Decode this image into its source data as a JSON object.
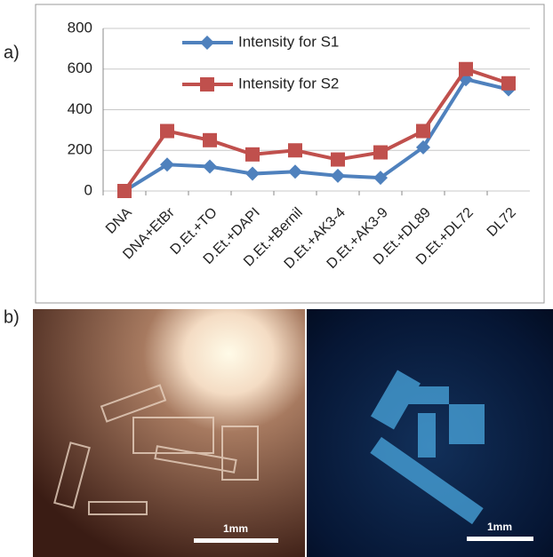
{
  "figure": {
    "panel_a": "a)",
    "panel_b": "b)",
    "scale_left": "1mm",
    "scale_right": "1mm"
  },
  "chart_data": {
    "type": "line",
    "categories": [
      "DNA",
      "DNA+EtBr",
      "D.Et.+TO",
      "D.Et.+DAPI",
      "D.Et.+Bernil",
      "D.Et.+AK3-4",
      "D.Et.+AK3-9",
      "D.Et.+DL89",
      "D.Et.+DL72",
      "DL72"
    ],
    "series": [
      {
        "name": "Intensity for S1",
        "color": "#4f81bd",
        "marker": "diamond",
        "values": [
          0,
          130,
          120,
          85,
          95,
          75,
          65,
          215,
          550,
          500
        ]
      },
      {
        "name": "Intensity for S2",
        "color": "#c0504d",
        "marker": "square",
        "values": [
          0,
          295,
          250,
          180,
          200,
          155,
          190,
          295,
          600,
          530
        ]
      }
    ],
    "ylim": [
      0,
      800
    ],
    "yticks": [
      0,
      200,
      400,
      600,
      800
    ],
    "grid": true,
    "legend": "top-left"
  }
}
